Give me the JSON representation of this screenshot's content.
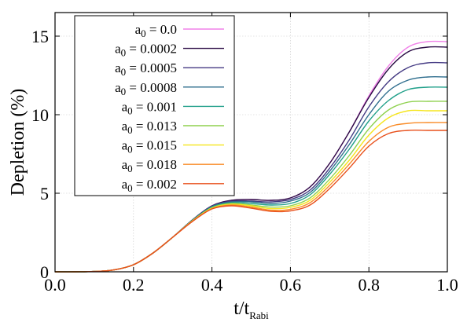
{
  "chart_data": {
    "type": "line",
    "title": "",
    "xlabel": "t/t",
    "xlabel_sub": "Rabi",
    "ylabel": "Depletion (%)",
    "xlim": [
      0.0,
      1.0
    ],
    "ylim": [
      0,
      16.5
    ],
    "xticks": [
      0.0,
      0.2,
      0.4,
      0.6,
      0.8,
      1.0
    ],
    "xtick_labels": [
      "0.0",
      "0.2",
      "0.4",
      "0.6",
      "0.8",
      "1.0"
    ],
    "yticks": [
      0,
      5,
      10,
      15
    ],
    "ytick_labels": [
      "0",
      "5",
      "10",
      "15"
    ],
    "grid": true,
    "legend_position": "top-left",
    "x": [
      0.0,
      0.05,
      0.1,
      0.15,
      0.2,
      0.25,
      0.3,
      0.35,
      0.4,
      0.45,
      0.5,
      0.55,
      0.6,
      0.65,
      0.7,
      0.75,
      0.8,
      0.85,
      0.9,
      0.95,
      1.0
    ],
    "series": [
      {
        "label_prefix": "a",
        "label_sub": "0",
        "label_value": " = 0.0",
        "color": "#f080e8",
        "values": [
          0,
          0,
          0.02,
          0.12,
          0.45,
          1.2,
          2.2,
          3.3,
          4.2,
          4.55,
          4.6,
          4.55,
          4.7,
          5.4,
          6.9,
          8.9,
          11.2,
          13.1,
          14.3,
          14.65,
          14.65
        ]
      },
      {
        "label_prefix": "a",
        "label_sub": "0",
        "label_value": " = 0.0002",
        "color": "#2a0b44",
        "values": [
          0,
          0,
          0.02,
          0.12,
          0.45,
          1.2,
          2.2,
          3.3,
          4.2,
          4.55,
          4.6,
          4.55,
          4.7,
          5.4,
          6.9,
          8.9,
          11.1,
          12.9,
          14.0,
          14.3,
          14.3
        ]
      },
      {
        "label_prefix": "a",
        "label_sub": "0",
        "label_value": " = 0.0005",
        "color": "#443a83",
        "values": [
          0,
          0,
          0.02,
          0.12,
          0.45,
          1.2,
          2.2,
          3.3,
          4.18,
          4.5,
          4.5,
          4.45,
          4.6,
          5.2,
          6.6,
          8.4,
          10.5,
          12.1,
          13.0,
          13.3,
          13.3
        ]
      },
      {
        "label_prefix": "a",
        "label_sub": "0",
        "label_value": " = 0.0008",
        "color": "#2f6e8e",
        "values": [
          0,
          0,
          0.02,
          0.12,
          0.45,
          1.2,
          2.2,
          3.28,
          4.15,
          4.45,
          4.45,
          4.35,
          4.5,
          5.05,
          6.4,
          8.1,
          10.0,
          11.5,
          12.2,
          12.4,
          12.4
        ]
      },
      {
        "label_prefix": "a",
        "label_sub": "0",
        "label_value": " = 0.001",
        "color": "#21a08a",
        "values": [
          0,
          0,
          0.02,
          0.12,
          0.45,
          1.2,
          2.2,
          3.27,
          4.12,
          4.4,
          4.35,
          4.25,
          4.35,
          4.9,
          6.2,
          7.8,
          9.6,
          10.9,
          11.6,
          11.75,
          11.75
        ]
      },
      {
        "label_prefix": "a",
        "label_sub": "0",
        "label_value": " = 0.013",
        "color": "#8fd14f",
        "values": [
          0,
          0,
          0.02,
          0.12,
          0.45,
          1.2,
          2.2,
          3.25,
          4.08,
          4.35,
          4.25,
          4.12,
          4.2,
          4.7,
          5.9,
          7.4,
          9.1,
          10.3,
          10.8,
          10.85,
          10.85
        ]
      },
      {
        "label_prefix": "a",
        "label_sub": "0",
        "label_value": " = 0.015",
        "color": "#f5e51e",
        "values": [
          0,
          0,
          0.02,
          0.12,
          0.45,
          1.2,
          2.2,
          3.24,
          4.05,
          4.3,
          4.2,
          4.02,
          4.1,
          4.55,
          5.7,
          7.1,
          8.7,
          9.8,
          10.25,
          10.25,
          10.25
        ]
      },
      {
        "label_prefix": "a",
        "label_sub": "0",
        "label_value": " = 0.018",
        "color": "#f98c28",
        "values": [
          0,
          0,
          0.02,
          0.12,
          0.45,
          1.2,
          2.2,
          3.22,
          4.02,
          4.25,
          4.12,
          3.92,
          3.98,
          4.4,
          5.5,
          6.85,
          8.3,
          9.2,
          9.45,
          9.5,
          9.5
        ]
      },
      {
        "label_prefix": "a",
        "label_sub": "0",
        "label_value": " = 0.002",
        "color": "#e8501c",
        "values": [
          0,
          0,
          0.02,
          0.12,
          0.45,
          1.2,
          2.2,
          3.2,
          4.0,
          4.2,
          4.05,
          3.85,
          3.88,
          4.25,
          5.3,
          6.6,
          8.0,
          8.8,
          9.0,
          9.0,
          9.0
        ]
      }
    ]
  }
}
